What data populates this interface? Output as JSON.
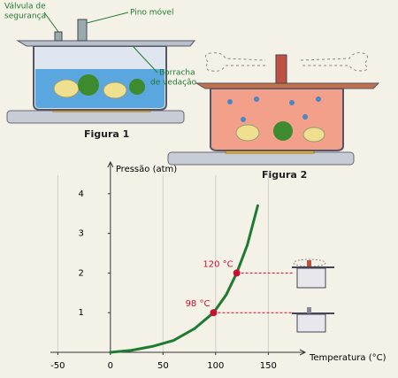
{
  "figure1": {
    "caption": "Figura 1",
    "labels": [
      "Válvula de",
      "segurança",
      "Pino móvel",
      "Borracha",
      "de vedação"
    ]
  },
  "figure2": {
    "caption": "Figura 2"
  },
  "chart_data": {
    "type": "line",
    "y_label": "Pressão (atm)",
    "x_label": "Temperatura (°C)",
    "xlim": [
      -57,
      185
    ],
    "ylim": [
      0,
      4.8
    ],
    "xticks": [
      -50,
      0,
      50,
      100,
      150
    ],
    "yticks": [
      1,
      2,
      3,
      4
    ],
    "grid": "x",
    "x": [
      0,
      20,
      40,
      60,
      80,
      98,
      110,
      120,
      130,
      140
    ],
    "series": [
      {
        "color": "#1f7a32",
        "values": [
          0,
          0.05,
          0.15,
          0.3,
          0.6,
          1,
          1.45,
          2,
          2.7,
          3.7
        ]
      }
    ],
    "annotations": [
      {
        "x": 98,
        "y": 1,
        "label": "98 °C",
        "color": "#c8102e"
      },
      {
        "x": 120,
        "y": 2,
        "label": "120 °C",
        "color": "#c8102e"
      }
    ]
  }
}
